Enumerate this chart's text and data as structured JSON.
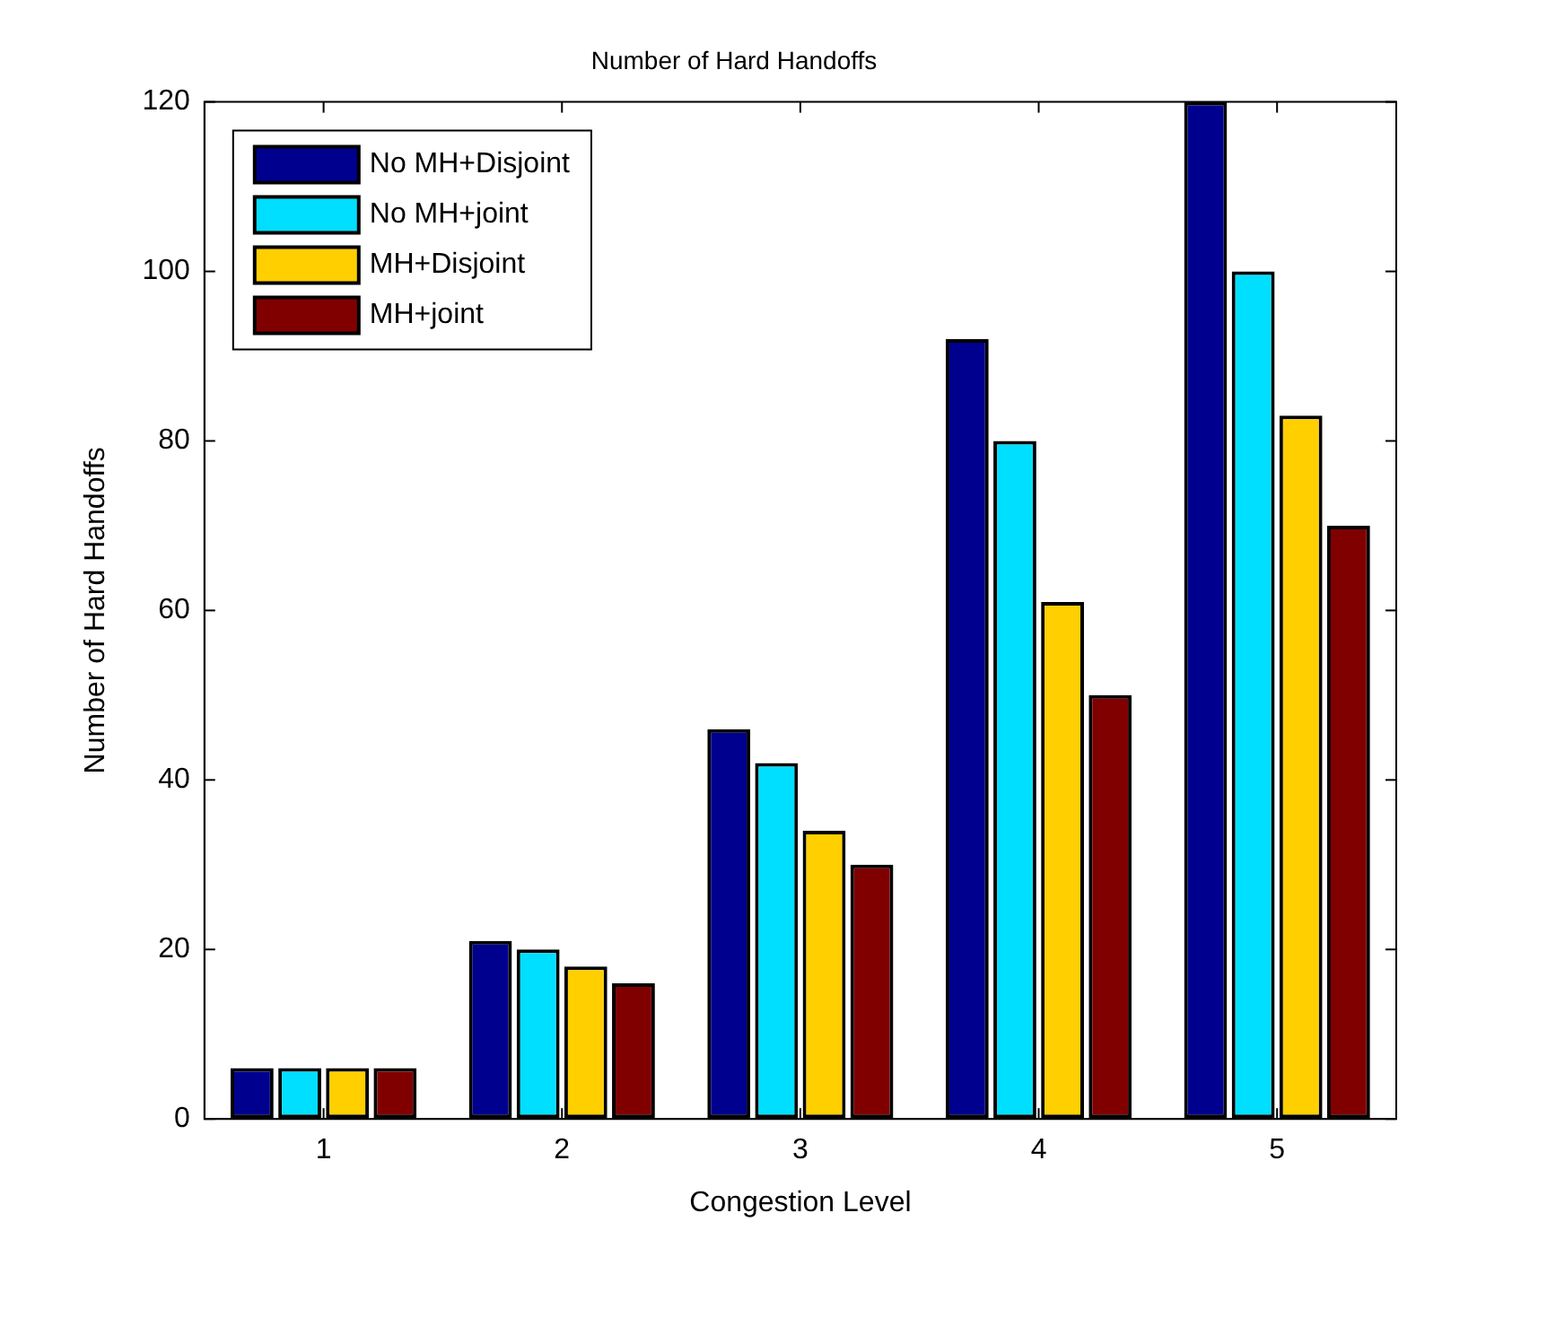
{
  "chart_data": {
    "type": "bar",
    "title": "Number of Hard Handoffs",
    "xlabel": "Congestion Level",
    "ylabel": "Number of Hard Handoffs",
    "categories": [
      "1",
      "2",
      "3",
      "4",
      "5"
    ],
    "series": [
      {
        "name": "No MH+Disjoint",
        "color": "#00008f",
        "values": [
          6,
          21,
          46,
          92,
          120
        ]
      },
      {
        "name": "No MH+joint",
        "color": "#00dfff",
        "values": [
          6,
          20,
          42,
          80,
          100
        ]
      },
      {
        "name": "MH+Disjoint",
        "color": "#ffcf00",
        "values": [
          6,
          18,
          34,
          61,
          83
        ]
      },
      {
        "name": "MH+joint",
        "color": "#800000",
        "values": [
          6,
          16,
          30,
          50,
          70
        ]
      }
    ],
    "ylim": [
      0,
      120
    ],
    "yticks": [
      0,
      20,
      40,
      60,
      80,
      100,
      120
    ],
    "grid": false,
    "legend": "top left"
  }
}
